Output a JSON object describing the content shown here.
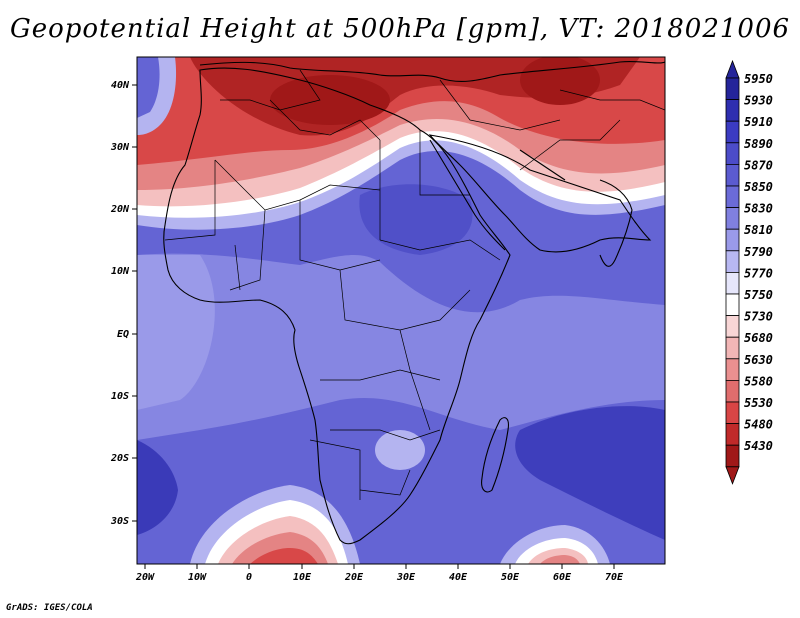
{
  "title": "Geopotential Height at 500hPa [gpm], VT: 2018021006",
  "credit": "GrADS: IGES/COLA",
  "lat_labels": [
    "40N",
    "30N",
    "20N",
    "10N",
    "EQ",
    "10S",
    "20S",
    "30S"
  ],
  "lon_labels": [
    "20W",
    "10W",
    "0",
    "10E",
    "20E",
    "30E",
    "40E",
    "50E",
    "60E",
    "70E"
  ],
  "colorbar": {
    "levels": [
      "5950",
      "5930",
      "5910",
      "5890",
      "5870",
      "5850",
      "5830",
      "5810",
      "5790",
      "5770",
      "5750",
      "5730",
      "5680",
      "5630",
      "5580",
      "5530",
      "5480",
      "5430"
    ],
    "colors": [
      "#24249a",
      "#2e2eb0",
      "#3b3bc2",
      "#4c4cc9",
      "#5b5bd0",
      "#6b6bd8",
      "#8080e0",
      "#9a9ae9",
      "#b8b8f2",
      "#e6e6fb",
      "#ffffff",
      "#f8d6d6",
      "#f2b6b6",
      "#ea9090",
      "#e06d6d",
      "#d84545",
      "#c02a2a",
      "#a01818"
    ]
  },
  "map_colors": {
    "ocean_deep": "#3a3ab8",
    "blue_mid": "#6464d4",
    "blue_light": "#8c8ce4",
    "lavender": "#b4b4f0",
    "white": "#ffffff",
    "pink": "#f4c0c0",
    "red_light": "#e48484",
    "red": "#d84848",
    "red_dark": "#b02424"
  }
}
